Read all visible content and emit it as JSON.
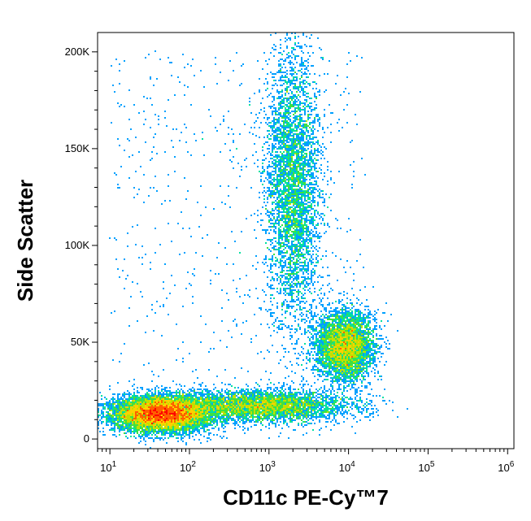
{
  "chart_data": {
    "type": "scatter",
    "title": "",
    "xlabel": "CD11c PE-Cy™7",
    "ylabel": "Side Scatter",
    "x_scale": "log",
    "xlim": [
      7,
      1200000
    ],
    "ylim": [
      -5000,
      210000
    ],
    "grid": false,
    "x_ticks": [
      {
        "base": "10",
        "exp": "1",
        "value": 10
      },
      {
        "base": "10",
        "exp": "2",
        "value": 100
      },
      {
        "base": "10",
        "exp": "3",
        "value": 1000
      },
      {
        "base": "10",
        "exp": "4",
        "value": 10000
      },
      {
        "base": "10",
        "exp": "5",
        "value": 100000
      },
      {
        "base": "10",
        "exp": "6",
        "value": 1000000
      }
    ],
    "y_ticks": [
      {
        "label": "0",
        "value": 0
      },
      {
        "label": "50K",
        "value": 50000
      },
      {
        "label": "100K",
        "value": 100000
      },
      {
        "label": "150K",
        "value": 150000
      },
      {
        "label": "200K",
        "value": 200000
      }
    ],
    "color_scale": [
      "#0000ff",
      "#00a0ff",
      "#00e0a0",
      "#40e040",
      "#c0e000",
      "#ffd000",
      "#ff6000",
      "#ff0000"
    ],
    "populations": [
      {
        "x_center": 45,
        "x_spread_decades": 0.3,
        "y_center": 13000,
        "y_spread": 4500,
        "density": "high"
      },
      {
        "x_center": 800,
        "x_spread_decades": 0.55,
        "y_center": 17000,
        "y_spread": 4000,
        "density": "medium"
      },
      {
        "x_center": 2000,
        "x_spread_decades": 0.17,
        "y_center": 130000,
        "y_spread": 35000,
        "density": "medium"
      },
      {
        "x_center": 9000,
        "x_spread_decades": 0.18,
        "y_center": 48000,
        "y_spread": 9000,
        "density": "medium"
      }
    ]
  }
}
